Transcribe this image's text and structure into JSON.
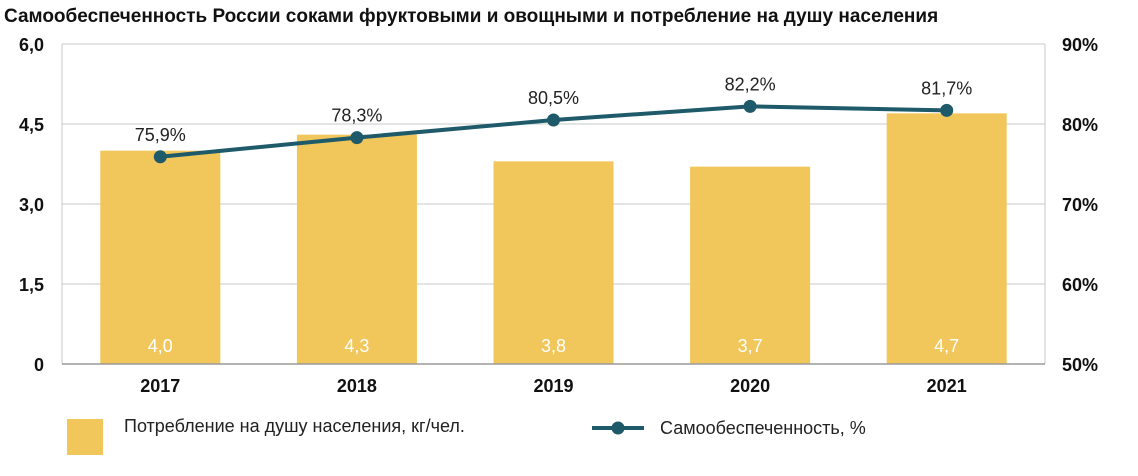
{
  "chart_data": {
    "type": "bar",
    "title": "Самообеспеченность России соками фруктовыми и овощными и потребление на душу населения",
    "categories": [
      "2017",
      "2018",
      "2019",
      "2020",
      "2021"
    ],
    "series": [
      {
        "name": "Потребление на душу населения, кг/чел.",
        "type": "bar",
        "axis": "left",
        "values": [
          4.0,
          4.3,
          3.8,
          3.7,
          4.7
        ],
        "labels": [
          "4,0",
          "4,3",
          "3,8",
          "3,7",
          "4,7"
        ],
        "color": "#f1c75b"
      },
      {
        "name": "Самообеспеченность, %",
        "type": "line",
        "axis": "right",
        "values": [
          75.9,
          78.3,
          80.5,
          82.2,
          81.7
        ],
        "labels": [
          "75,9%",
          "78,3%",
          "80,5%",
          "82,2%",
          "81,7%"
        ],
        "color": "#1f5a6b"
      }
    ],
    "y_left": {
      "range": [
        0,
        6.0
      ],
      "ticks": [
        "0",
        "1,5",
        "3,0",
        "4,5",
        "6,0"
      ]
    },
    "y_right": {
      "range": [
        50,
        90
      ],
      "ticks": [
        "50%",
        "60%",
        "70%",
        "80%",
        "90%"
      ]
    },
    "grid": true,
    "legend": "bottom"
  },
  "legend": {
    "bar_label": "Потребление на душу населения, кг/чел.",
    "line_label": "Самообеспеченность, %"
  }
}
